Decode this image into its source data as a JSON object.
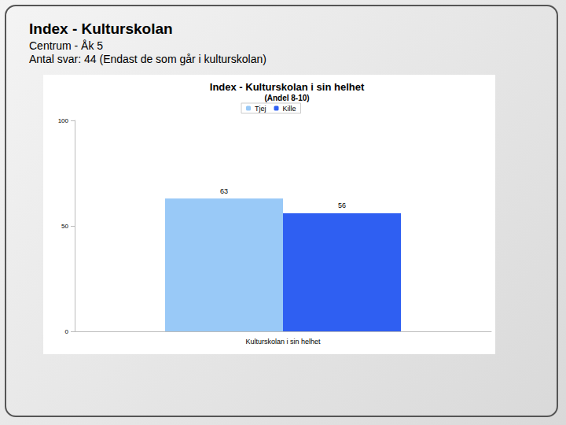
{
  "header": {
    "title": "Index - Kulturskolan",
    "lines": [
      "Centrum - Åk 5",
      "Antal svar: 44 (Endast de som går i kulturskolan)"
    ]
  },
  "chart_data": {
    "type": "bar",
    "title": "Index - Kulturskolan i sin helhet",
    "subtitle": "(Andel 8-10)",
    "categories": [
      "Kulturskolan i sin helhet"
    ],
    "series": [
      {
        "name": "Tjej",
        "color": "#99c9f7",
        "values": [
          63
        ]
      },
      {
        "name": "Kille",
        "color": "#2f5ff2",
        "values": [
          56
        ]
      }
    ],
    "ylim": [
      0,
      100
    ],
    "yticks": [
      0,
      50,
      100
    ],
    "grid": false,
    "legend": "top",
    "data_labels": true
  }
}
